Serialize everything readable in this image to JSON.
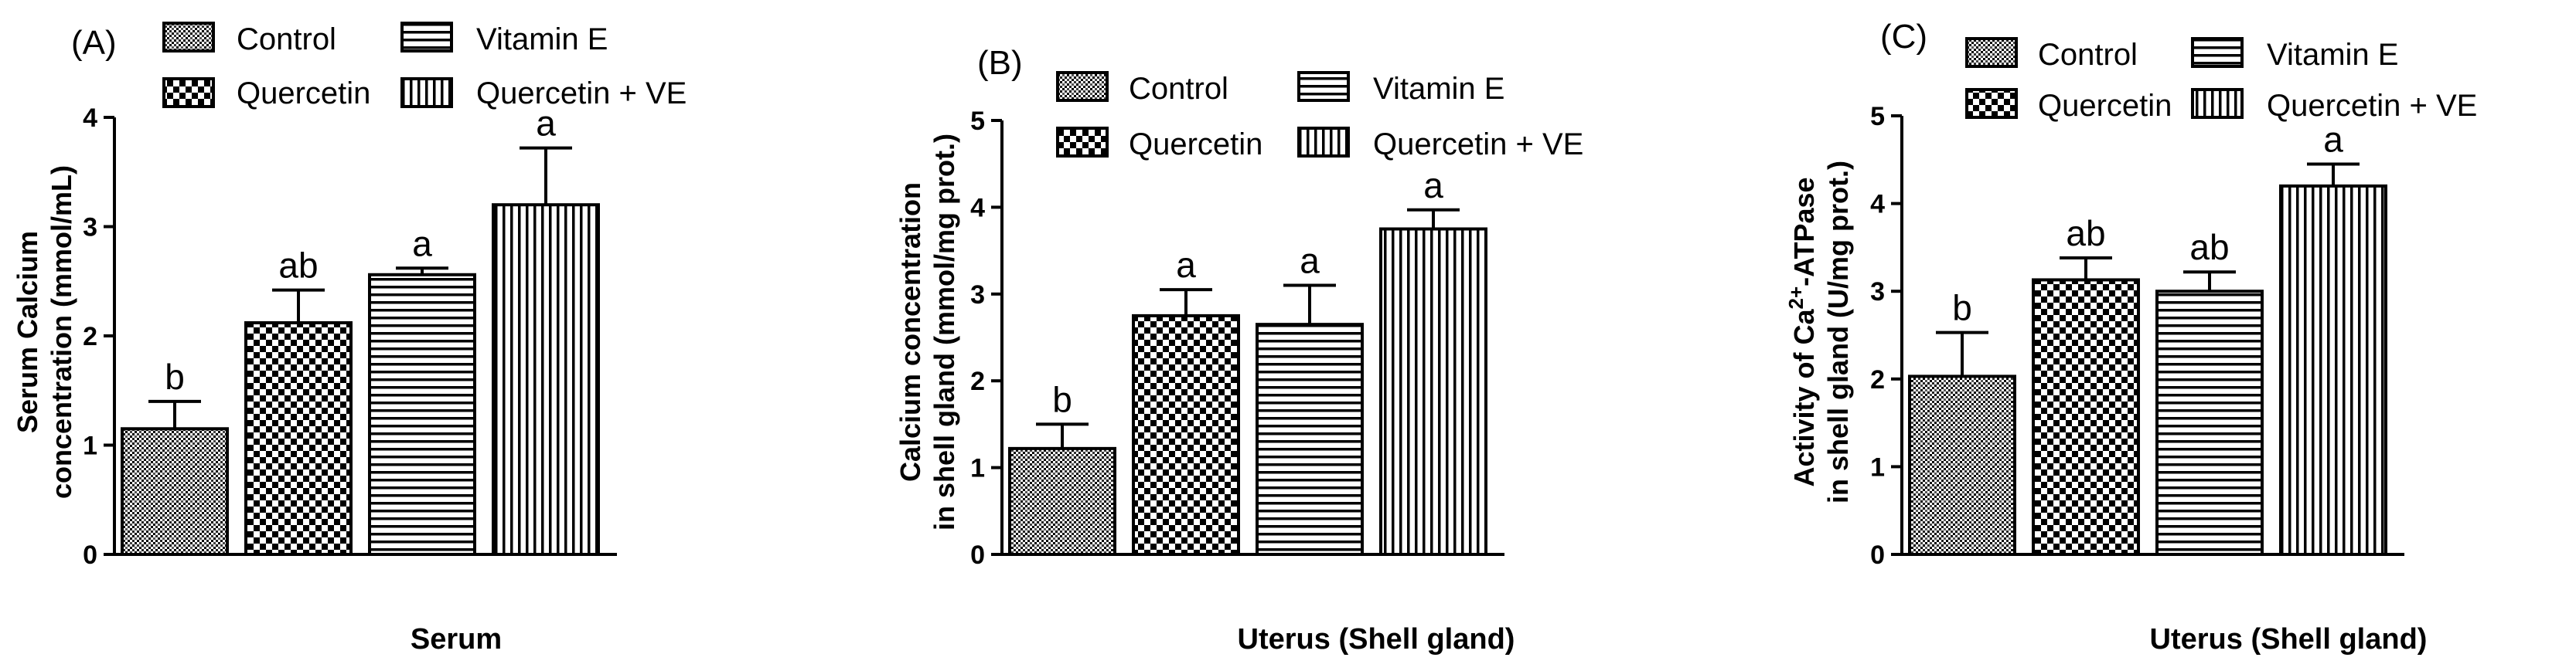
{
  "figure": {
    "panels": [
      "(A)",
      "(B)",
      "(C)"
    ]
  },
  "legend": {
    "entries": [
      "Control",
      "Vitamin E",
      "Quercetin",
      "Quercetin + VE"
    ]
  },
  "chart_data": [
    {
      "type": "bar",
      "panel_label": "(A)",
      "categories": [
        "Control",
        "Quercetin",
        "Vitamin E",
        "Quercetin + VE"
      ],
      "values": [
        1.15,
        2.12,
        2.56,
        3.2
      ],
      "errors": [
        0.25,
        0.3,
        0.06,
        0.52
      ],
      "significance": [
        "b",
        "ab",
        "a",
        "a"
      ],
      "ylabel_lines": [
        "Serum Calcium",
        "concentration (mmol/mL)"
      ],
      "xlabel": "Serum",
      "ylim": [
        0,
        4
      ],
      "yticks": [
        "0",
        "1",
        "2",
        "3",
        "4"
      ],
      "legend_position": "top",
      "grid": false
    },
    {
      "type": "bar",
      "panel_label": "(B)",
      "categories": [
        "Control",
        "Quercetin",
        "Vitamin E",
        "Quercetin + VE"
      ],
      "values": [
        1.22,
        2.75,
        2.65,
        3.75
      ],
      "errors": [
        0.28,
        0.3,
        0.45,
        0.22
      ],
      "significance": [
        "b",
        "a",
        "a",
        "a"
      ],
      "ylabel_lines": [
        "Calcium concentration",
        "in shell gland (mmol/mg prot.)"
      ],
      "xlabel": "Uterus (Shell gland)",
      "ylim": [
        0,
        5
      ],
      "yticks": [
        "0",
        "1",
        "2",
        "3",
        "4",
        "5"
      ],
      "legend_position": "top",
      "grid": false
    },
    {
      "type": "bar",
      "panel_label": "(C)",
      "categories": [
        "Control",
        "Quercetin",
        "Vitamin E",
        "Quercetin + VE"
      ],
      "values": [
        2.03,
        3.13,
        3.0,
        4.2
      ],
      "errors": [
        0.5,
        0.25,
        0.22,
        0.25
      ],
      "significance": [
        "b",
        "ab",
        "ab",
        "a"
      ],
      "ylabel_lines": [
        "Activity of Ca",
        "2+",
        "-ATPase",
        "in shell gland (U/mg prot.)"
      ],
      "xlabel": "Uterus (Shell gland)",
      "ylim": [
        0,
        5
      ],
      "yticks": [
        "0",
        "1",
        "2",
        "3",
        "4",
        "5"
      ],
      "legend_position": "top",
      "grid": false
    }
  ]
}
